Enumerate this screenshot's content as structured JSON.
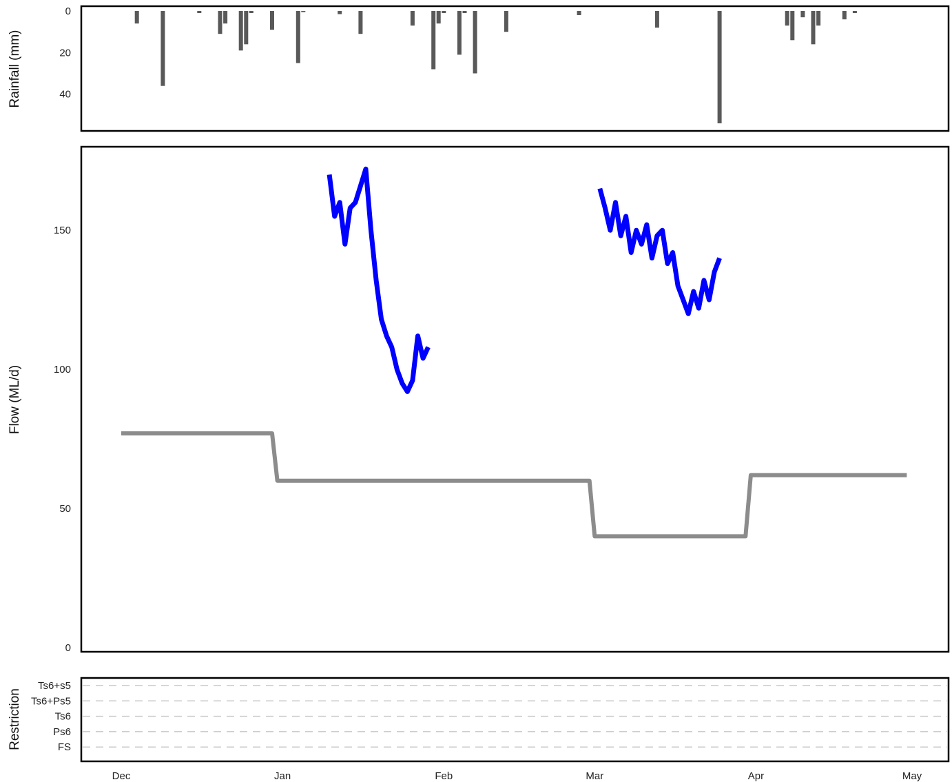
{
  "chart_data": [
    {
      "type": "bar",
      "panel": "rainfall",
      "ylabel": "Rainfall (mm)",
      "y_reversed": true,
      "ylim": [
        0,
        55
      ],
      "yticks": [
        "0",
        "20",
        "40"
      ],
      "bar_color": "#595959",
      "x_dates": [
        "2019-12-04",
        "2019-12-09",
        "2019-12-16",
        "2019-12-20",
        "2019-12-21",
        "2019-12-24",
        "2019-12-25",
        "2019-12-26",
        "2019-12-30",
        "2020-01-04",
        "2020-01-05",
        "2020-01-12",
        "2020-01-16",
        "2020-01-26",
        "2020-01-30",
        "2020-01-31",
        "2020-02-01",
        "2020-02-04",
        "2020-02-05",
        "2020-02-07",
        "2020-02-13",
        "2020-02-27",
        "2020-03-13",
        "2020-03-25",
        "2020-04-07",
        "2020-04-08",
        "2020-04-10",
        "2020-04-12",
        "2020-04-13",
        "2020-04-18",
        "2020-04-20"
      ],
      "values": [
        6,
        36,
        1,
        11,
        6,
        19,
        16,
        1,
        9,
        25,
        0.5,
        1.5,
        11,
        7,
        28,
        6,
        1,
        21,
        1,
        30,
        10,
        2,
        8,
        54,
        7,
        14,
        3,
        16,
        7,
        4,
        1
      ]
    },
    {
      "type": "line",
      "panel": "flow",
      "ylabel": "Flow (ML/d)",
      "ylim": [
        0,
        180
      ],
      "yticks": [
        "0",
        "50",
        "100",
        "150"
      ],
      "series": [
        {
          "color": "#0000ff",
          "x": [
            "2020-01-10",
            "2020-01-11",
            "2020-01-12",
            "2020-01-13",
            "2020-01-14",
            "2020-01-15",
            "2020-01-17",
            "2020-01-18",
            "2020-01-19",
            "2020-01-20",
            "2020-01-21",
            "2020-01-22",
            "2020-01-23",
            "2020-01-24",
            "2020-01-25",
            "2020-01-26",
            "2020-01-27",
            "2020-01-28",
            "2020-01-29"
          ],
          "y": [
            170,
            155,
            160,
            145,
            158,
            160,
            172,
            150,
            132,
            118,
            112,
            108,
            100,
            95,
            92,
            96,
            112,
            104,
            108
          ]
        },
        {
          "color": "#0000ff",
          "x": [
            "2020-03-02",
            "2020-03-03",
            "2020-03-04",
            "2020-03-05",
            "2020-03-06",
            "2020-03-07",
            "2020-03-08",
            "2020-03-09",
            "2020-03-10",
            "2020-03-11",
            "2020-03-12",
            "2020-03-13",
            "2020-03-14",
            "2020-03-15",
            "2020-03-16",
            "2020-03-17",
            "2020-03-18",
            "2020-03-19",
            "2020-03-20",
            "2020-03-21",
            "2020-03-22",
            "2020-03-23",
            "2020-03-24",
            "2020-03-25"
          ],
          "y": [
            165,
            158,
            150,
            160,
            148,
            155,
            142,
            150,
            145,
            152,
            140,
            148,
            150,
            138,
            142,
            130,
            125,
            120,
            128,
            122,
            132,
            125,
            135,
            140
          ]
        },
        {
          "color": "#8c8c8c",
          "x": [
            "2019-12-01",
            "2019-12-30",
            "2019-12-31",
            "2020-02-29",
            "2020-03-01",
            "2020-03-30",
            "2020-03-31",
            "2020-04-30"
          ],
          "y": [
            77,
            77,
            60,
            60,
            40,
            40,
            62,
            62
          ]
        }
      ]
    },
    {
      "type": "line",
      "panel": "restriction",
      "ylabel": "Restriction",
      "categories": [
        "Ts6+s5",
        "Ts6+Ps5",
        "Ts6",
        "Ps6",
        "FS"
      ],
      "grid": "dashed"
    }
  ],
  "x_axis": {
    "ticks": [
      "Dec",
      "Jan",
      "Feb",
      "Mar",
      "Apr",
      "May"
    ],
    "tick_dates": [
      "2019-12-01",
      "2020-01-01",
      "2020-02-01",
      "2020-03-01",
      "2020-04-01",
      "2020-05-01"
    ]
  }
}
